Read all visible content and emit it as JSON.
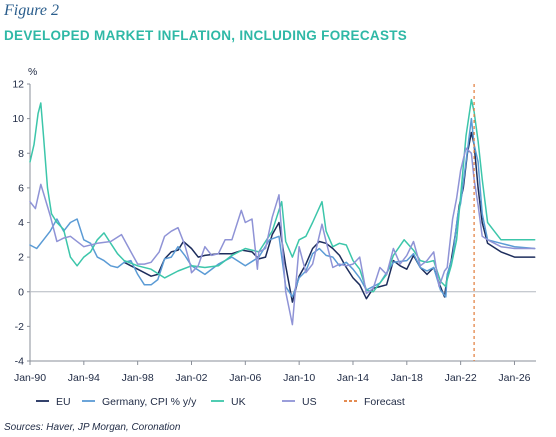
{
  "header": {
    "figure_label": "Figure 2",
    "title": "DEVELOPED MARKET INFLATION, INCLUDING FORECASTS"
  },
  "footer": {
    "source": "Sources: Haver, JP Morgan, Coronation"
  },
  "chart_data": {
    "type": "line",
    "ylabel": "%",
    "xlabel": "",
    "ylim": [
      -4,
      12
    ],
    "yticks": [
      -4,
      -2,
      0,
      2,
      4,
      6,
      8,
      10,
      12
    ],
    "xlim": [
      1990.0,
      2027.6
    ],
    "xticks": [
      {
        "label": "Jan-90",
        "x": 1990.0
      },
      {
        "label": "Jan-94",
        "x": 1994.0
      },
      {
        "label": "Jan-98",
        "x": 1998.0
      },
      {
        "label": "Jan-02",
        "x": 2002.0
      },
      {
        "label": "Jan-06",
        "x": 2006.0
      },
      {
        "label": "Jan-10",
        "x": 2010.0
      },
      {
        "label": "Jan-14",
        "x": 2014.0
      },
      {
        "label": "Jan-18",
        "x": 2018.0
      },
      {
        "label": "Jan-22",
        "x": 2022.0
      },
      {
        "label": "Jan-26",
        "x": 2026.0
      }
    ],
    "grid": false,
    "zero_line": true,
    "legend_position": "bottom",
    "forecast_start": 2023.0,
    "forecast_color": "#e07b39",
    "series": [
      {
        "name": "EU",
        "color": "#1d2d5c",
        "x": [
          1997.0,
          1997.5,
          1998.0,
          1998.5,
          1999.0,
          1999.5,
          2000.0,
          2000.5,
          2001.0,
          2001.4,
          2002.0,
          2002.5,
          2003.0,
          2004.0,
          2005.0,
          2005.8,
          2006.5,
          2007.0,
          2007.5,
          2008.0,
          2008.5,
          2009.0,
          2009.5,
          2010.0,
          2010.5,
          2011.0,
          2011.5,
          2012.0,
          2012.5,
          2013.0,
          2013.5,
          2014.0,
          2014.5,
          2015.0,
          2015.5,
          2016.0,
          2016.5,
          2017.0,
          2017.5,
          2018.0,
          2018.5,
          2019.0,
          2019.5,
          2020.0,
          2020.4,
          2020.8,
          2021.0,
          2021.3,
          2021.6,
          2021.9,
          2022.2,
          2022.5,
          2022.8,
          2023.0,
          2023.3,
          2023.6,
          2024.0,
          2025.0,
          2026.0,
          2027.5
        ],
        "y": [
          1.7,
          1.5,
          1.3,
          1.1,
          0.9,
          1.0,
          1.9,
          2.3,
          2.4,
          2.9,
          2.5,
          2.0,
          2.1,
          2.2,
          2.2,
          2.4,
          2.3,
          1.9,
          2.0,
          3.3,
          4.0,
          1.5,
          -0.6,
          0.9,
          1.6,
          2.5,
          2.9,
          2.8,
          2.5,
          2.1,
          1.4,
          0.8,
          0.4,
          -0.4,
          0.2,
          0.3,
          0.4,
          1.8,
          1.5,
          1.3,
          2.1,
          1.4,
          1.0,
          1.4,
          0.5,
          -0.3,
          0.9,
          1.8,
          3.3,
          5.0,
          6.0,
          8.0,
          9.2,
          8.5,
          6.0,
          4.0,
          2.8,
          2.3,
          2.0,
          2.0
        ]
      },
      {
        "name": "Germany, CPI % y/y",
        "color": "#5b9bd5",
        "x": [
          1990.0,
          1990.5,
          1991.0,
          1991.5,
          1992.0,
          1992.5,
          1993.0,
          1993.5,
          1994.0,
          1994.5,
          1995.0,
          1995.5,
          1996.0,
          1996.5,
          1997.0,
          1997.5,
          1998.0,
          1998.5,
          1999.0,
          1999.5,
          2000.0,
          2000.5,
          2001.0,
          2001.5,
          2002.0,
          2003.0,
          2004.0,
          2005.0,
          2006.0,
          2007.0,
          2007.8,
          2008.5,
          2009.0,
          2009.5,
          2010.0,
          2010.5,
          2011.0,
          2011.5,
          2012.0,
          2012.5,
          2013.0,
          2013.5,
          2014.0,
          2014.5,
          2015.0,
          2016.0,
          2017.0,
          2018.0,
          2018.5,
          2019.0,
          2019.5,
          2020.0,
          2020.5,
          2020.9,
          2021.0,
          2021.4,
          2021.8,
          2022.0,
          2022.4,
          2022.8,
          2023.0,
          2023.3,
          2023.6,
          2024.0,
          2025.0,
          2026.0,
          2027.5
        ],
        "y": [
          2.7,
          2.5,
          3.0,
          3.5,
          4.2,
          3.5,
          4.0,
          4.2,
          3.0,
          2.8,
          2.0,
          1.8,
          1.5,
          1.4,
          1.7,
          1.8,
          1.0,
          0.4,
          0.4,
          0.7,
          1.9,
          2.0,
          2.6,
          2.1,
          1.5,
          1.0,
          1.6,
          2.0,
          1.5,
          2.0,
          3.0,
          3.2,
          0.3,
          -0.3,
          0.8,
          1.2,
          2.2,
          2.5,
          2.1,
          2.0,
          1.5,
          1.7,
          1.3,
          0.8,
          0.1,
          0.5,
          1.7,
          1.8,
          2.2,
          1.4,
          1.2,
          1.4,
          0.1,
          -0.3,
          1.0,
          2.0,
          4.5,
          5.1,
          7.5,
          10.0,
          8.5,
          7.5,
          4.5,
          3.0,
          2.8,
          2.6,
          2.5
        ]
      },
      {
        "name": "UK",
        "color": "#3cc6aa",
        "x": [
          1990.0,
          1990.3,
          1990.6,
          1990.8,
          1991.0,
          1991.3,
          1991.6,
          1992.0,
          1992.5,
          1993.0,
          1993.5,
          1994.0,
          1994.5,
          1995.0,
          1995.5,
          1996.0,
          1996.5,
          1997.0,
          1998.0,
          1999.0,
          2000.0,
          2001.0,
          2002.0,
          2003.0,
          2004.0,
          2005.0,
          2006.0,
          2007.0,
          2008.0,
          2008.7,
          2009.0,
          2009.5,
          2010.0,
          2010.5,
          2011.0,
          2011.7,
          2012.0,
          2012.5,
          2013.0,
          2013.5,
          2014.0,
          2014.5,
          2015.0,
          2015.5,
          2016.0,
          2016.5,
          2017.0,
          2017.8,
          2018.5,
          2019.0,
          2019.5,
          2020.0,
          2020.5,
          2020.9,
          2021.0,
          2021.3,
          2021.7,
          2022.0,
          2022.4,
          2022.8,
          2023.0,
          2023.3,
          2023.6,
          2024.0,
          2024.5,
          2025.0,
          2026.0,
          2027.5
        ],
        "y": [
          7.5,
          8.5,
          10.3,
          10.9,
          9.0,
          6.0,
          4.5,
          4.0,
          3.6,
          2.0,
          1.5,
          2.0,
          2.3,
          3.0,
          3.4,
          2.8,
          2.2,
          1.8,
          1.5,
          1.3,
          0.8,
          1.2,
          1.5,
          1.4,
          1.5,
          2.1,
          2.5,
          2.3,
          3.5,
          5.2,
          2.9,
          2.0,
          3.0,
          3.2,
          4.0,
          5.2,
          3.5,
          2.6,
          2.8,
          2.7,
          1.8,
          1.3,
          0.1,
          0.0,
          0.5,
          1.0,
          2.1,
          3.0,
          2.4,
          1.8,
          1.7,
          1.8,
          0.6,
          0.3,
          0.7,
          1.5,
          3.0,
          5.5,
          9.0,
          11.1,
          10.4,
          8.7,
          6.5,
          4.0,
          3.5,
          3.0,
          3.0,
          3.0
        ]
      },
      {
        "name": "US",
        "color": "#8f93d6",
        "x": [
          1990.0,
          1990.4,
          1990.8,
          1991.0,
          1991.5,
          1992.0,
          1992.5,
          1993.0,
          1994.0,
          1995.0,
          1996.0,
          1996.8,
          1997.5,
          1998.0,
          1998.5,
          1999.0,
          1999.6,
          2000.0,
          2000.5,
          2001.0,
          2001.5,
          2001.9,
          2002.0,
          2002.5,
          2003.0,
          2003.5,
          2004.0,
          2004.5,
          2005.0,
          2005.7,
          2006.0,
          2006.5,
          2006.9,
          2007.0,
          2007.5,
          2008.0,
          2008.5,
          2008.9,
          2009.0,
          2009.5,
          2010.0,
          2010.5,
          2011.0,
          2011.7,
          2012.0,
          2012.5,
          2013.0,
          2013.5,
          2014.0,
          2014.5,
          2015.0,
          2015.5,
          2016.0,
          2016.5,
          2017.0,
          2017.5,
          2018.0,
          2018.5,
          2019.0,
          2019.5,
          2020.0,
          2020.4,
          2020.8,
          2021.0,
          2021.4,
          2021.7,
          2022.0,
          2022.4,
          2022.8,
          2023.0,
          2023.3,
          2023.6,
          2024.0,
          2025.0,
          2026.0,
          2027.5
        ],
        "y": [
          5.2,
          4.8,
          6.2,
          5.7,
          4.4,
          2.9,
          3.1,
          3.2,
          2.6,
          2.8,
          2.9,
          3.3,
          2.3,
          1.6,
          1.6,
          1.7,
          2.3,
          3.2,
          3.5,
          3.7,
          2.7,
          1.6,
          1.1,
          1.5,
          2.6,
          2.1,
          2.2,
          3.0,
          3.0,
          4.7,
          4.0,
          4.2,
          1.3,
          2.3,
          2.5,
          4.3,
          5.6,
          1.1,
          0.0,
          -1.9,
          2.6,
          1.1,
          1.6,
          3.9,
          2.9,
          1.4,
          1.6,
          1.5,
          1.6,
          2.0,
          -0.1,
          0.2,
          1.4,
          1.0,
          2.5,
          1.6,
          2.1,
          2.9,
          1.5,
          1.8,
          2.3,
          0.3,
          1.2,
          1.4,
          4.2,
          5.4,
          7.0,
          8.3,
          8.0,
          6.5,
          5.0,
          3.2,
          3.0,
          2.6,
          2.5,
          2.5
        ]
      }
    ],
    "legend": [
      {
        "label": "EU",
        "color": "#1d2d5c",
        "style": "solid"
      },
      {
        "label": "Germany, CPI % y/y",
        "color": "#5b9bd5",
        "style": "solid"
      },
      {
        "label": "UK",
        "color": "#3cc6aa",
        "style": "solid"
      },
      {
        "label": "US",
        "color": "#8f93d6",
        "style": "solid"
      },
      {
        "label": "Forecast",
        "color": "#e07b39",
        "style": "dashed"
      }
    ]
  }
}
